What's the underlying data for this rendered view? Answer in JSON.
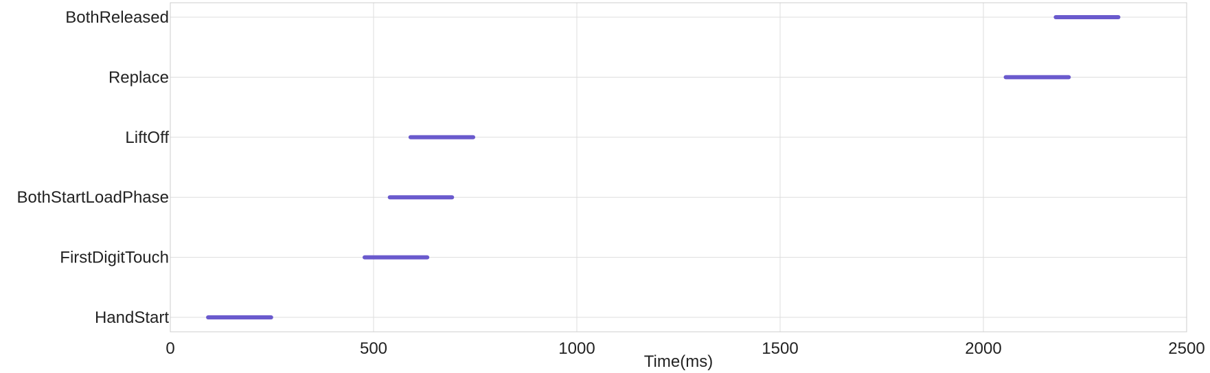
{
  "chart_data": {
    "type": "bar",
    "orientation": "horizontal",
    "subtype": "range",
    "title": "",
    "xlabel": "Time(ms)",
    "ylabel": "",
    "xlim": [
      0,
      2500
    ],
    "xticks": [
      "0",
      "500",
      "1000",
      "1500",
      "2000",
      "2500"
    ],
    "grid": true,
    "color": "#6a5acd",
    "categories": [
      "HandStart",
      "FirstDigitTouch",
      "BothStartLoadPhase",
      "LiftOff",
      "Replace",
      "BothReleased"
    ],
    "series": [
      {
        "ranges": [
          [
            93,
            248
          ],
          [
            478,
            632
          ],
          [
            540,
            693
          ],
          [
            591,
            745
          ],
          [
            2055,
            2210
          ],
          [
            2178,
            2332
          ]
        ]
      }
    ]
  }
}
